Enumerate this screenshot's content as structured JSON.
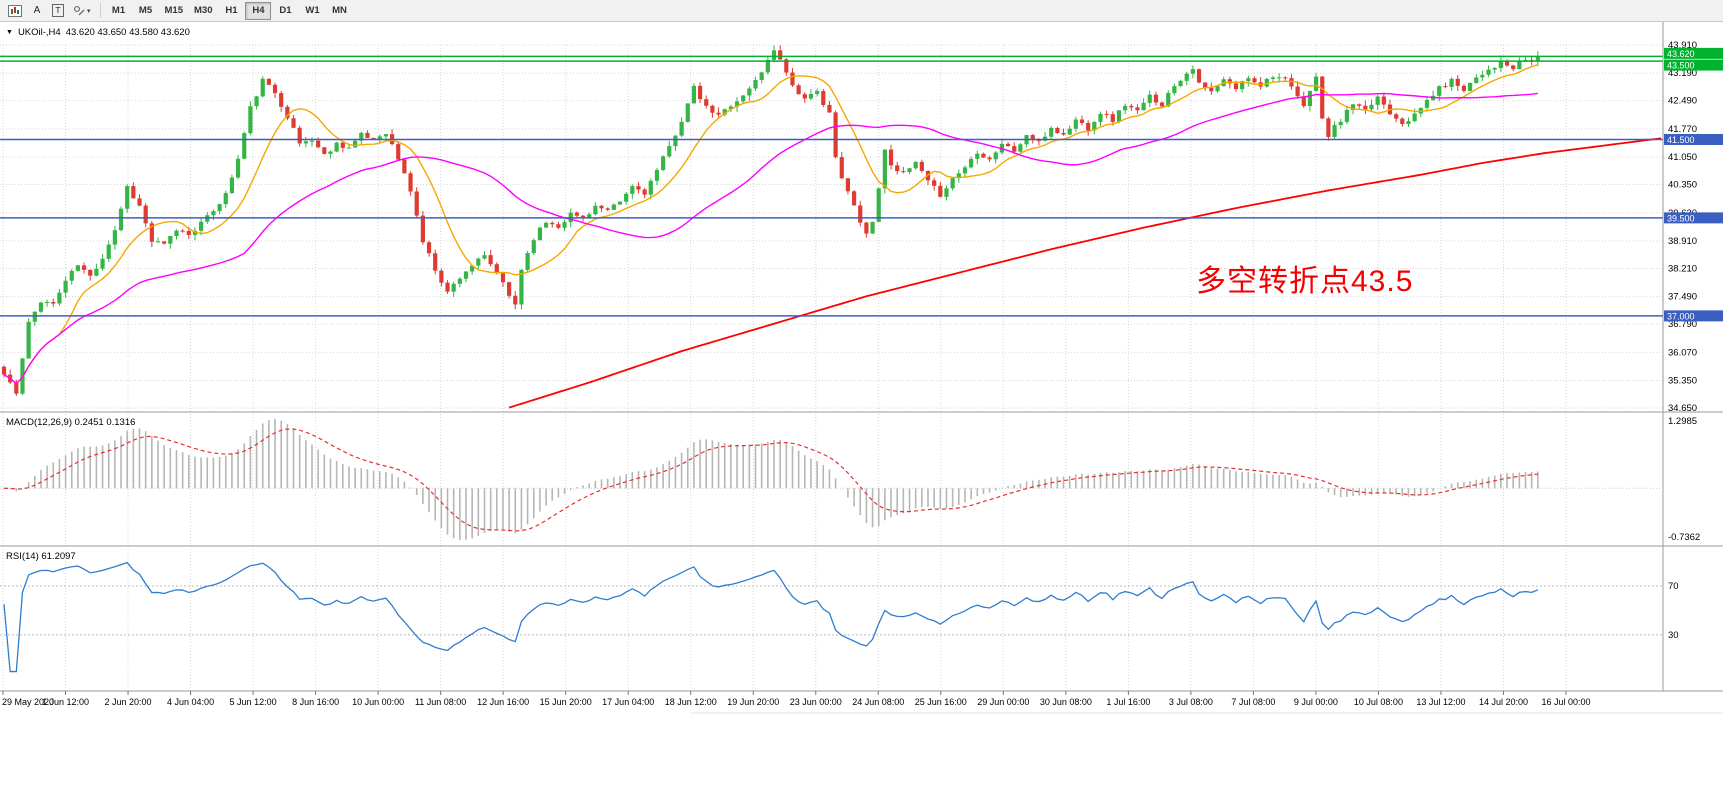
{
  "toolbar": {
    "text_tool_label": "A",
    "frame_tool_label": "T",
    "timeframes": [
      "M1",
      "M5",
      "M15",
      "M30",
      "H1",
      "H4",
      "D1",
      "W1",
      "MN"
    ],
    "selected_timeframe": "H4"
  },
  "chart": {
    "symbol": "UKOil-,H4",
    "ohlc": "43.620 43.650 43.580 43.620",
    "macd_label": "MACD(12,26,9) 0.2451 0.1316",
    "rsi_label": "RSI(14) 61.2097",
    "annotation": "多空转折点43.5"
  },
  "chart_data": {
    "type": "candlestick",
    "symbol": "UKOil-",
    "timeframe": "H4",
    "ohlc_current": {
      "open": 43.62,
      "high": 43.65,
      "low": 43.58,
      "close": 43.62
    },
    "price_range": [
      34.65,
      43.91
    ],
    "price_axis_ticks": [
      "43.910",
      "43.190",
      "42.490",
      "41.770",
      "41.050",
      "40.350",
      "39.630",
      "38.910",
      "38.210",
      "37.490",
      "36.790",
      "36.070",
      "35.350",
      "34.650"
    ],
    "candle_count": 250,
    "seed": 11,
    "noise_amp": 0.07,
    "wick_amp": 0.14,
    "close_path_anchors": [
      [
        0,
        35.5
      ],
      [
        1,
        35.3
      ],
      [
        2,
        35.0
      ],
      [
        3,
        35.9
      ],
      [
        4,
        36.8
      ],
      [
        6,
        37.4
      ],
      [
        8,
        37.3
      ],
      [
        10,
        37.9
      ],
      [
        12,
        38.3
      ],
      [
        14,
        38.0
      ],
      [
        16,
        38.5
      ],
      [
        18,
        39.2
      ],
      [
        20,
        40.3
      ],
      [
        22,
        39.8
      ],
      [
        24,
        38.9
      ],
      [
        26,
        38.8
      ],
      [
        28,
        39.2
      ],
      [
        30,
        39.1
      ],
      [
        33,
        39.5
      ],
      [
        36,
        40.1
      ],
      [
        38,
        41.0
      ],
      [
        40,
        42.3
      ],
      [
        42,
        43.0
      ],
      [
        44,
        42.7
      ],
      [
        46,
        42.1
      ],
      [
        48,
        41.4
      ],
      [
        50,
        41.5
      ],
      [
        52,
        41.1
      ],
      [
        54,
        41.4
      ],
      [
        56,
        41.3
      ],
      [
        58,
        41.6
      ],
      [
        60,
        41.5
      ],
      [
        62,
        41.7
      ],
      [
        64,
        41.0
      ],
      [
        66,
        40.2
      ],
      [
        68,
        38.9
      ],
      [
        70,
        38.2
      ],
      [
        72,
        37.6
      ],
      [
        74,
        38.0
      ],
      [
        76,
        38.3
      ],
      [
        78,
        38.5
      ],
      [
        80,
        38.1
      ],
      [
        82,
        37.5
      ],
      [
        83,
        37.3
      ],
      [
        84,
        38.2
      ],
      [
        86,
        39.0
      ],
      [
        88,
        39.4
      ],
      [
        90,
        39.3
      ],
      [
        92,
        39.6
      ],
      [
        94,
        39.5
      ],
      [
        96,
        39.8
      ],
      [
        98,
        39.65
      ],
      [
        100,
        39.9
      ],
      [
        102,
        40.3
      ],
      [
        104,
        40.15
      ],
      [
        106,
        40.7
      ],
      [
        108,
        41.3
      ],
      [
        110,
        42.0
      ],
      [
        112,
        42.8
      ],
      [
        114,
        42.3
      ],
      [
        116,
        42.1
      ],
      [
        118,
        42.4
      ],
      [
        120,
        42.6
      ],
      [
        122,
        43.0
      ],
      [
        124,
        43.5
      ],
      [
        125,
        43.8
      ],
      [
        126,
        43.6
      ],
      [
        127,
        43.2
      ],
      [
        128,
        42.9
      ],
      [
        130,
        42.5
      ],
      [
        132,
        42.7
      ],
      [
        134,
        42.2
      ],
      [
        135,
        41.0
      ],
      [
        136,
        40.5
      ],
      [
        138,
        39.8
      ],
      [
        140,
        39.1
      ],
      [
        141,
        39.4
      ],
      [
        142,
        40.3
      ],
      [
        143,
        41.2
      ],
      [
        144,
        40.9
      ],
      [
        146,
        40.6
      ],
      [
        148,
        40.9
      ],
      [
        150,
        40.4
      ],
      [
        152,
        40.1
      ],
      [
        154,
        40.5
      ],
      [
        156,
        40.8
      ],
      [
        158,
        41.2
      ],
      [
        160,
        41.0
      ],
      [
        162,
        41.4
      ],
      [
        164,
        41.2
      ],
      [
        166,
        41.6
      ],
      [
        168,
        41.4
      ],
      [
        170,
        41.8
      ],
      [
        172,
        41.6
      ],
      [
        174,
        42.0
      ],
      [
        176,
        41.8
      ],
      [
        178,
        42.2
      ],
      [
        180,
        42.0
      ],
      [
        182,
        42.4
      ],
      [
        184,
        42.2
      ],
      [
        186,
        42.6
      ],
      [
        188,
        42.4
      ],
      [
        190,
        42.9
      ],
      [
        192,
        43.2
      ],
      [
        193,
        43.35
      ],
      [
        194,
        42.9
      ],
      [
        196,
        42.7
      ],
      [
        198,
        43.0
      ],
      [
        200,
        42.8
      ],
      [
        202,
        43.1
      ],
      [
        204,
        42.9
      ],
      [
        206,
        43.15
      ],
      [
        208,
        43.0
      ],
      [
        210,
        42.6
      ],
      [
        211,
        42.3
      ],
      [
        212,
        42.8
      ],
      [
        213,
        43.1
      ],
      [
        214,
        42.0
      ],
      [
        215,
        41.6
      ],
      [
        217,
        42.0
      ],
      [
        219,
        42.4
      ],
      [
        221,
        42.2
      ],
      [
        223,
        42.6
      ],
      [
        225,
        42.2
      ],
      [
        227,
        41.95
      ],
      [
        229,
        42.1
      ],
      [
        231,
        42.5
      ],
      [
        233,
        42.8
      ],
      [
        235,
        43.0
      ],
      [
        237,
        42.8
      ],
      [
        239,
        43.1
      ],
      [
        241,
        43.3
      ],
      [
        243,
        43.45
      ],
      [
        245,
        43.3
      ],
      [
        247,
        43.55
      ],
      [
        248,
        43.5
      ],
      [
        249,
        43.62
      ]
    ],
    "ma_fast_period": 10,
    "ma_mid_period": 40,
    "ma_slow_anchors": [
      [
        82,
        34.66
      ],
      [
        95,
        35.3
      ],
      [
        110,
        36.1
      ],
      [
        125,
        36.8
      ],
      [
        140,
        37.5
      ],
      [
        155,
        38.1
      ],
      [
        170,
        38.7
      ],
      [
        185,
        39.25
      ],
      [
        200,
        39.75
      ],
      [
        215,
        40.2
      ],
      [
        230,
        40.6
      ],
      [
        240,
        40.9
      ],
      [
        250,
        41.15
      ],
      [
        270,
        41.55
      ]
    ],
    "horizontal_lines": [
      {
        "price": 43.62,
        "label": "43.620",
        "color_key": "line_green",
        "label_dy": -3
      },
      {
        "price": 43.5,
        "label": "43.500",
        "color_key": "line_green",
        "label_dy": 4
      },
      {
        "price": 41.5,
        "label": "41.500",
        "color_key": "line_blue",
        "label_dy": 0
      },
      {
        "price": 39.5,
        "label": "39.500",
        "color_key": "line_blue",
        "label_dy": 0
      },
      {
        "price": 37.0,
        "label": "37.000",
        "color_key": "line_blue",
        "label_dy": 0
      }
    ],
    "macd": {
      "params": "12,26,9",
      "main": 0.2451,
      "signal": 0.1316,
      "axis_top": "1.2985",
      "axis_bottom": "-0.7362"
    },
    "rsi": {
      "period": 14,
      "value": 61.2097,
      "levels": [
        70,
        30
      ]
    },
    "x_axis_labels": [
      "29 May 2020",
      "1 Jun 12:00",
      "2 Jun 20:00",
      "4 Jun 04:00",
      "5 Jun 12:00",
      "8 Jun 16:00",
      "10 Jun 00:00",
      "11 Jun 08:00",
      "12 Jun 16:00",
      "15 Jun 20:00",
      "17 Jun 04:00",
      "18 Jun 12:00",
      "19 Jun 20:00",
      "23 Jun 00:00",
      "24 Jun 08:00",
      "25 Jun 16:00",
      "29 Jun 00:00",
      "30 Jun 08:00",
      "1 Jul 16:00",
      "3 Jul 08:00",
      "7 Jul 08:00",
      "9 Jul 00:00",
      "10 Jul 08:00",
      "13 Jul 12:00",
      "14 Jul 20:00",
      "16 Jul 00:00"
    ]
  },
  "colors": {
    "candle_up": "#34b545",
    "candle_down": "#de3b31",
    "ma_fast": "#f6a800",
    "ma_mid": "#ff00ff",
    "ma_slow": "#ff0000",
    "line_blue": "#3b5fc0",
    "line_green": "#00b22d",
    "grid": "#d6d6d6",
    "macd_hist": "#b6b6b6",
    "macd_signal": "#e53030",
    "rsi_line": "#2e7dd1",
    "annotation": "#f40000",
    "axis_border": "#9a9a9a"
  }
}
